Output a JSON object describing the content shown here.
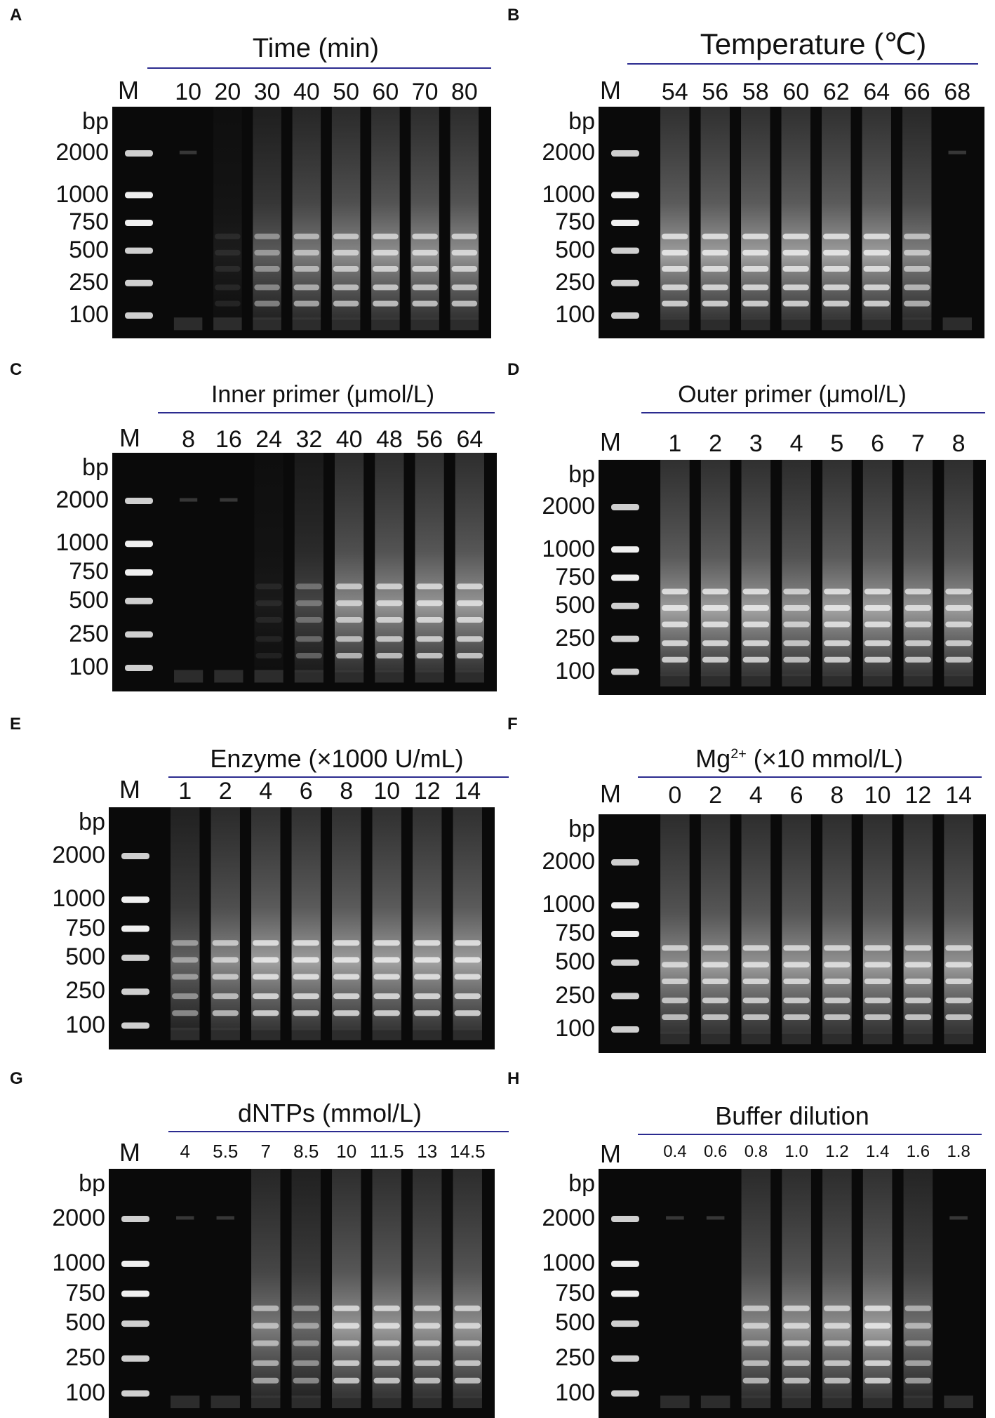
{
  "panels": [
    {
      "letter": "A",
      "title": "Time (min)",
      "marker": "M",
      "bp_title": "bp",
      "ladder": [
        "2000",
        "1000",
        "750",
        "500",
        "250",
        "100"
      ],
      "lanes": [
        "10",
        "20",
        "30",
        "40",
        "50",
        "60",
        "70",
        "80"
      ],
      "intensity": [
        0.0,
        0.12,
        0.55,
        0.75,
        0.85,
        0.9,
        0.9,
        0.9
      ]
    },
    {
      "letter": "B",
      "title": "Temperature (℃)",
      "marker": "M",
      "bp_title": "bp",
      "ladder": [
        "2000",
        "1000",
        "750",
        "500",
        "250",
        "100"
      ],
      "lanes": [
        "54",
        "56",
        "58",
        "60",
        "62",
        "64",
        "66",
        "68"
      ],
      "intensity": [
        1.0,
        1.0,
        1.0,
        1.0,
        1.0,
        1.0,
        0.8,
        0.05
      ]
    },
    {
      "letter": "C",
      "title": "Inner primer (μmol/L)",
      "marker": "M",
      "bp_title": "bp",
      "ladder": [
        "2000",
        "1000",
        "750",
        "500",
        "250",
        "100"
      ],
      "lanes": [
        "8",
        "16",
        "24",
        "32",
        "40",
        "48",
        "56",
        "64"
      ],
      "intensity": [
        0.05,
        0.05,
        0.1,
        0.4,
        0.85,
        0.9,
        0.95,
        0.95
      ]
    },
    {
      "letter": "D",
      "title": "Outer primer (μmol/L)",
      "marker": "M",
      "bp_title": "bp",
      "ladder": [
        "2000",
        "1000",
        "750",
        "500",
        "250",
        "100"
      ],
      "lanes": [
        "1",
        "2",
        "3",
        "4",
        "5",
        "6",
        "7",
        "8"
      ],
      "intensity": [
        1.0,
        1.0,
        1.0,
        0.9,
        1.0,
        1.0,
        0.95,
        0.95
      ]
    },
    {
      "letter": "E",
      "title": "Enzyme (×1000 U/mL)",
      "marker": "M",
      "bp_title": "bp",
      "ladder": [
        "2000",
        "1000",
        "750",
        "500",
        "250",
        "100"
      ],
      "lanes": [
        "1",
        "2",
        "4",
        "6",
        "8",
        "10",
        "12",
        "14"
      ],
      "intensity": [
        0.6,
        0.85,
        1.0,
        1.0,
        1.0,
        1.0,
        1.0,
        1.0
      ]
    },
    {
      "letter": "F",
      "title": "Mg",
      "title_sup": "2+",
      "title_rest": " (×10 mmol/L)",
      "marker": "M",
      "bp_title": "bp",
      "ladder": [
        "2000",
        "1000",
        "750",
        "500",
        "250",
        "100"
      ],
      "lanes": [
        "0",
        "2",
        "4",
        "6",
        "8",
        "10",
        "12",
        "14"
      ],
      "intensity": [
        0.9,
        0.95,
        0.95,
        0.95,
        0.95,
        0.95,
        0.95,
        0.95
      ]
    },
    {
      "letter": "G",
      "title": "dNTPs (mmol/L)",
      "marker": "M",
      "bp_title": "bp",
      "ladder": [
        "2000",
        "1000",
        "750",
        "500",
        "250",
        "100"
      ],
      "lanes": [
        "4",
        "5.5",
        "7",
        "8.5",
        "10",
        "11.5",
        "13",
        "14.5"
      ],
      "intensity": [
        0.05,
        0.05,
        0.75,
        0.6,
        0.95,
        0.95,
        0.9,
        0.9
      ]
    },
    {
      "letter": "H",
      "title": "Buffer dilution",
      "marker": "M",
      "bp_title": "bp",
      "ladder": [
        "2000",
        "1000",
        "750",
        "500",
        "250",
        "100"
      ],
      "lanes": [
        "0.4",
        "0.6",
        "0.8",
        "1.0",
        "1.2",
        "1.4",
        "1.6",
        "1.8"
      ],
      "intensity": [
        0.05,
        0.05,
        0.85,
        0.9,
        0.9,
        1.0,
        0.7,
        0.05
      ]
    }
  ]
}
